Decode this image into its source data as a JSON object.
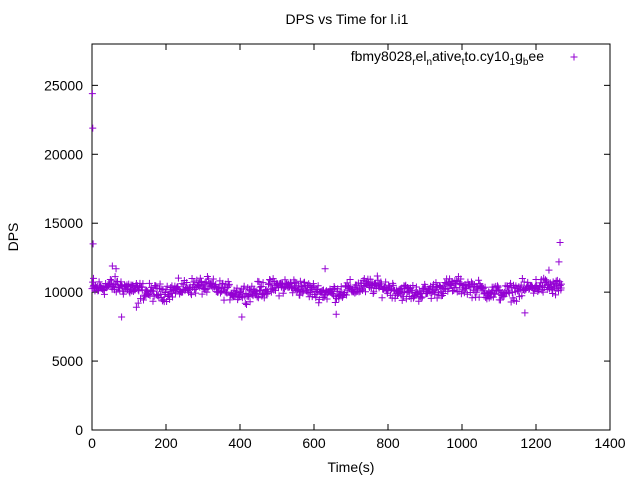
{
  "chart_data": {
    "type": "scatter",
    "title": "DPS vs Time for l.i1",
    "xlabel": "Time(s)",
    "ylabel": "DPS",
    "xlim": [
      0,
      1400
    ],
    "ylim": [
      0,
      28000
    ],
    "xticks": [
      0,
      200,
      400,
      600,
      800,
      1000,
      1200,
      1400
    ],
    "yticks": [
      0,
      5000,
      10000,
      15000,
      20000,
      25000
    ],
    "grid": false,
    "legend_position": "top-right",
    "marker": "plus",
    "series": [
      {
        "name": "fbmy8028_relative_to.cy10_1g_bee",
        "legend_parts": {
          "p1": "fbmy8028",
          "s1": "r",
          "p2": "el",
          "s2": "n",
          "p3": "ative",
          "s3": "t",
          "p4": "to.cy10",
          "s4": "1",
          "p5": "g",
          "s5": "b",
          "p6": "ee"
        },
        "color": "#9400d3",
        "summary": {
          "x_start": 0,
          "x_end": 1270,
          "y_center": 10200,
          "y_band": [
            8500,
            11800
          ]
        },
        "points": [
          [
            1,
            24400
          ],
          [
            2,
            21900
          ],
          [
            3,
            13500
          ],
          [
            4,
            11000
          ],
          [
            5,
            10500
          ],
          [
            120,
            8900
          ],
          [
            125,
            9200
          ],
          [
            80,
            8200
          ],
          [
            405,
            8200
          ],
          [
            660,
            8400
          ],
          [
            1170,
            8500
          ],
          [
            630,
            11700
          ],
          [
            55,
            11900
          ],
          [
            65,
            11700
          ],
          [
            1235,
            11600
          ],
          [
            1262,
            12200
          ],
          [
            1265,
            13600
          ],
          [
            1255,
            10600
          ],
          [
            1268,
            10300
          ],
          [
            1245,
            9900
          ]
        ]
      }
    ]
  }
}
